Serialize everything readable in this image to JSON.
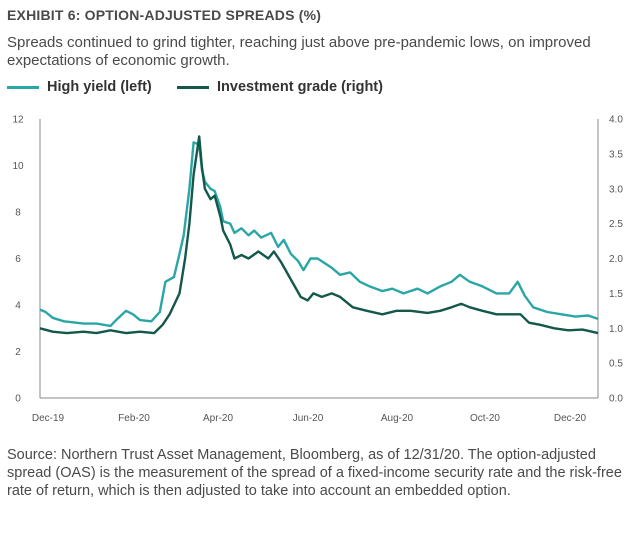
{
  "chart_data": {
    "type": "line",
    "title": "EXHIBIT 6: OPTION-ADJUSTED SPREADS (%)",
    "subtitle": "Spreads continued to grind tighter, reaching just above pre-pandemic lows, on improved expectations of economic growth.",
    "source": "Source: Northern Trust Asset Management, Bloomberg, as of 12/31/20. The option-adjusted spread (OAS) is the measurement of the spread of a fixed-income security rate and the risk-free rate of return, which is then adjusted to take into account an embedded option.",
    "x_ticks": [
      "Dec-19",
      "Feb-20",
      "Apr-20",
      "Jun-20",
      "Aug-20",
      "Oct-20",
      "Dec-20"
    ],
    "y_left": {
      "ticks": [
        "0",
        "2",
        "4",
        "6",
        "8",
        "10",
        "12"
      ],
      "lim": [
        0,
        12
      ]
    },
    "y_right": {
      "ticks": [
        "0.0",
        "0.5",
        "1.0",
        "1.5",
        "2.0",
        "2.5",
        "3.0",
        "3.5",
        "4.0"
      ],
      "lim": [
        0,
        4
      ]
    },
    "legend_position": "top-left",
    "grid": false,
    "series": [
      {
        "name": "High yield (left)",
        "axis": "left",
        "color": "#2aa6a6",
        "points": [
          [
            "2019-12-01",
            3.8
          ],
          [
            "2019-12-05",
            3.7
          ],
          [
            "2019-12-10",
            3.45
          ],
          [
            "2019-12-18",
            3.3
          ],
          [
            "2020-01-01",
            3.2
          ],
          [
            "2020-01-10",
            3.2
          ],
          [
            "2020-01-20",
            3.1
          ],
          [
            "2020-01-24",
            3.35
          ],
          [
            "2020-01-31",
            3.75
          ],
          [
            "2020-02-05",
            3.6
          ],
          [
            "2020-02-10",
            3.35
          ],
          [
            "2020-02-18",
            3.3
          ],
          [
            "2020-02-24",
            3.7
          ],
          [
            "2020-02-28",
            5.0
          ],
          [
            "2020-03-05",
            5.2
          ],
          [
            "2020-03-09",
            6.2
          ],
          [
            "2020-03-12",
            7.0
          ],
          [
            "2020-03-16",
            9.0
          ],
          [
            "2020-03-19",
            11.0
          ],
          [
            "2020-03-23",
            10.9
          ],
          [
            "2020-03-25",
            9.8
          ],
          [
            "2020-03-27",
            9.3
          ],
          [
            "2020-03-31",
            9.0
          ],
          [
            "2020-04-03",
            8.9
          ],
          [
            "2020-04-07",
            8.2
          ],
          [
            "2020-04-09",
            7.6
          ],
          [
            "2020-04-14",
            7.5
          ],
          [
            "2020-04-17",
            7.1
          ],
          [
            "2020-04-22",
            7.3
          ],
          [
            "2020-04-27",
            7.0
          ],
          [
            "2020-05-01",
            7.2
          ],
          [
            "2020-05-06",
            6.9
          ],
          [
            "2020-05-13",
            7.1
          ],
          [
            "2020-05-18",
            6.5
          ],
          [
            "2020-05-22",
            6.8
          ],
          [
            "2020-05-27",
            6.2
          ],
          [
            "2020-06-01",
            5.9
          ],
          [
            "2020-06-05",
            5.5
          ],
          [
            "2020-06-10",
            6.0
          ],
          [
            "2020-06-15",
            6.0
          ],
          [
            "2020-06-20",
            5.8
          ],
          [
            "2020-06-25",
            5.6
          ],
          [
            "2020-07-01",
            5.3
          ],
          [
            "2020-07-08",
            5.4
          ],
          [
            "2020-07-15",
            5.0
          ],
          [
            "2020-07-22",
            4.8
          ],
          [
            "2020-07-31",
            4.6
          ],
          [
            "2020-08-07",
            4.7
          ],
          [
            "2020-08-15",
            4.5
          ],
          [
            "2020-08-25",
            4.7
          ],
          [
            "2020-09-01",
            4.5
          ],
          [
            "2020-09-10",
            4.8
          ],
          [
            "2020-09-18",
            5.0
          ],
          [
            "2020-09-24",
            5.3
          ],
          [
            "2020-10-01",
            5.0
          ],
          [
            "2020-10-10",
            4.8
          ],
          [
            "2020-10-20",
            4.5
          ],
          [
            "2020-10-29",
            4.5
          ],
          [
            "2020-11-04",
            5.0
          ],
          [
            "2020-11-09",
            4.4
          ],
          [
            "2020-11-15",
            3.9
          ],
          [
            "2020-11-25",
            3.7
          ],
          [
            "2020-12-05",
            3.6
          ],
          [
            "2020-12-15",
            3.5
          ],
          [
            "2020-12-24",
            3.55
          ],
          [
            "2020-12-31",
            3.4
          ]
        ]
      },
      {
        "name": "Investment grade (right)",
        "axis": "right",
        "color": "#13584a",
        "points": [
          [
            "2019-12-01",
            1.0
          ],
          [
            "2019-12-10",
            0.95
          ],
          [
            "2019-12-20",
            0.93
          ],
          [
            "2020-01-01",
            0.95
          ],
          [
            "2020-01-10",
            0.93
          ],
          [
            "2020-01-20",
            0.97
          ],
          [
            "2020-01-31",
            0.93
          ],
          [
            "2020-02-10",
            0.95
          ],
          [
            "2020-02-20",
            0.93
          ],
          [
            "2020-02-26",
            1.05
          ],
          [
            "2020-03-02",
            1.2
          ],
          [
            "2020-03-09",
            1.5
          ],
          [
            "2020-03-13",
            2.0
          ],
          [
            "2020-03-16",
            2.5
          ],
          [
            "2020-03-19",
            3.2
          ],
          [
            "2020-03-23",
            3.75
          ],
          [
            "2020-03-25",
            3.3
          ],
          [
            "2020-03-27",
            3.0
          ],
          [
            "2020-03-31",
            2.85
          ],
          [
            "2020-04-03",
            2.9
          ],
          [
            "2020-04-07",
            2.6
          ],
          [
            "2020-04-09",
            2.4
          ],
          [
            "2020-04-14",
            2.2
          ],
          [
            "2020-04-17",
            2.0
          ],
          [
            "2020-04-22",
            2.05
          ],
          [
            "2020-04-27",
            2.0
          ],
          [
            "2020-05-04",
            2.1
          ],
          [
            "2020-05-11",
            2.0
          ],
          [
            "2020-05-15",
            2.1
          ],
          [
            "2020-05-20",
            1.95
          ],
          [
            "2020-05-27",
            1.7
          ],
          [
            "2020-06-03",
            1.45
          ],
          [
            "2020-06-08",
            1.4
          ],
          [
            "2020-06-12",
            1.5
          ],
          [
            "2020-06-18",
            1.45
          ],
          [
            "2020-06-25",
            1.5
          ],
          [
            "2020-07-01",
            1.45
          ],
          [
            "2020-07-10",
            1.3
          ],
          [
            "2020-07-20",
            1.25
          ],
          [
            "2020-07-31",
            1.2
          ],
          [
            "2020-08-10",
            1.25
          ],
          [
            "2020-08-20",
            1.25
          ],
          [
            "2020-09-01",
            1.22
          ],
          [
            "2020-09-10",
            1.25
          ],
          [
            "2020-09-18",
            1.3
          ],
          [
            "2020-09-25",
            1.35
          ],
          [
            "2020-10-01",
            1.3
          ],
          [
            "2020-10-10",
            1.25
          ],
          [
            "2020-10-20",
            1.2
          ],
          [
            "2020-10-31",
            1.2
          ],
          [
            "2020-11-06",
            1.2
          ],
          [
            "2020-11-12",
            1.08
          ],
          [
            "2020-11-20",
            1.05
          ],
          [
            "2020-11-30",
            1.0
          ],
          [
            "2020-12-10",
            0.97
          ],
          [
            "2020-12-20",
            0.98
          ],
          [
            "2020-12-31",
            0.93
          ]
        ]
      }
    ]
  }
}
